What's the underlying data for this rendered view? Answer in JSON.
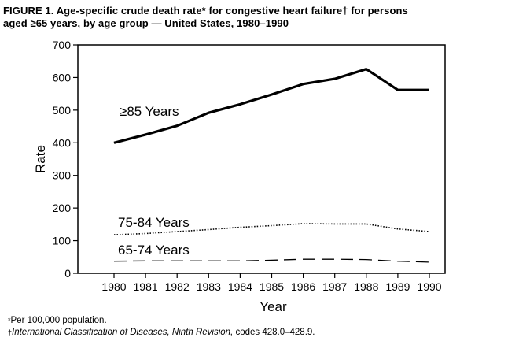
{
  "figure": {
    "title_line1": "FIGURE 1. Age-specific crude death rate* for congestive heart failure† for persons",
    "title_line2": "aged ≥65 years, by age group — United States, 1980–1990"
  },
  "chart_data": {
    "type": "line",
    "title": "Age-specific crude death rate* for congestive heart failure† for persons aged ≥65 years, by age group — United States, 1980–1990",
    "xlabel": "Year",
    "ylabel": "Rate",
    "x": [
      1980,
      1981,
      1982,
      1983,
      1984,
      1985,
      1986,
      1987,
      1988,
      1989,
      1990
    ],
    "ylim": [
      0,
      700
    ],
    "yticks": [
      0,
      100,
      200,
      300,
      400,
      500,
      600,
      700
    ],
    "grid": false,
    "series": [
      {
        "name": "≥85 Years",
        "style": "solid",
        "values": [
          400,
          425,
          452,
          492,
          518,
          548,
          580,
          596,
          626,
          562,
          562
        ]
      },
      {
        "name": "75-84 Years",
        "style": "dotted",
        "values": [
          118,
          122,
          128,
          134,
          141,
          146,
          152,
          151,
          151,
          136,
          128
        ]
      },
      {
        "name": "65-74 Years",
        "style": "dashed",
        "values": [
          37,
          38,
          38,
          38,
          38,
          40,
          43,
          43,
          42,
          37,
          34
        ]
      }
    ]
  },
  "footnotes": {
    "note1_mark": "*",
    "note1_text": "Per 100,000 population.",
    "note2_mark": "†",
    "note2_italic": "International Classification of Diseases, Ninth Revision,",
    "note2_text": " codes 428.0–428.9."
  }
}
